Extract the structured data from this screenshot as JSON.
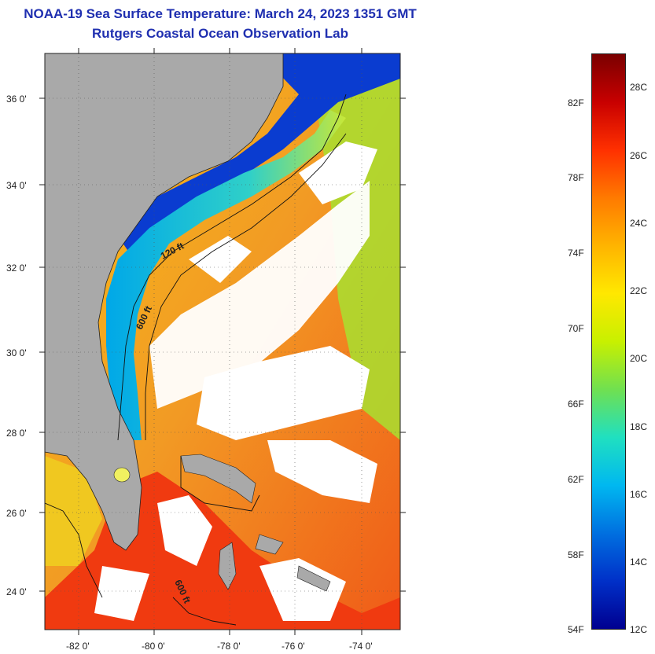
{
  "header": {
    "title": "NOAA-19 Sea Surface Temperature:  March 24, 2023 1351 GMT",
    "subtitle": "Rutgers Coastal Ocean Observation Lab"
  },
  "map": {
    "lat_labels": [
      "36 0'",
      "34 0'",
      "32 0'",
      "30 0'",
      "28 0'",
      "26 0'",
      "24 0'"
    ],
    "lon_labels": [
      "-82 0'",
      "-80 0'",
      "-78 0'",
      "-76 0'",
      "-74 0'"
    ],
    "contours": {
      "c120": "120 ft",
      "c600a": "600 ft",
      "c600b": "600 ft"
    }
  },
  "colorbar": {
    "f_labels": [
      "82F",
      "78F",
      "74F",
      "70F",
      "66F",
      "62F",
      "58F",
      "54F"
    ],
    "c_labels": [
      "28C",
      "26C",
      "24C",
      "22C",
      "20C",
      "18C",
      "16C",
      "14C",
      "12C"
    ],
    "colors": [
      "#7a0000",
      "#c80000",
      "#ff3000",
      "#ff7a00",
      "#ffb400",
      "#ffe800",
      "#c8f000",
      "#70e050",
      "#20e0c0",
      "#00b8f0",
      "#0070e0",
      "#0030c8",
      "#000090"
    ]
  }
}
